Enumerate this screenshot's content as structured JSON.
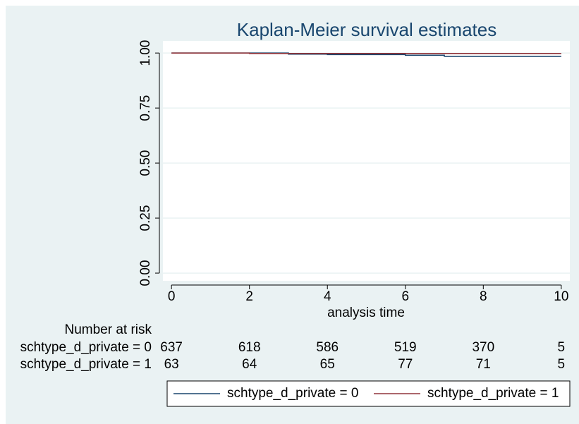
{
  "chart_data": {
    "type": "step",
    "title": "Kaplan-Meier survival estimates",
    "x_label": "analysis time",
    "x": [
      0,
      2,
      3,
      4,
      6,
      7,
      10
    ],
    "series": [
      {
        "name": "schtype_d_private = 0",
        "color": "#1a476f",
        "values": [
          1,
          1,
          0.995,
          0.993,
          0.99,
          0.985,
          0.985
        ]
      },
      {
        "name": "schtype_d_private = 1",
        "color": "#90353b",
        "values": [
          1,
          0.998,
          0.998,
          0.998,
          0.998,
          0.998,
          0.998
        ]
      }
    ],
    "xlim": [
      -0.22,
      10.22
    ],
    "xticks": [
      0,
      2,
      4,
      6,
      8,
      10
    ],
    "ylim": [
      -0.035,
      1.055
    ],
    "yticks": [
      {
        "value": 0,
        "label": "0.00"
      },
      {
        "value": 0.25,
        "label": "0.25"
      },
      {
        "value": 0.5,
        "label": "0.50"
      },
      {
        "value": 0.75,
        "label": "0.75"
      },
      {
        "value": 1,
        "label": "1.00"
      }
    ],
    "grid": true,
    "legend": "bottom",
    "risk_table": {
      "title": "Number at risk",
      "rows": [
        {
          "label": "schtype_d_private = 0",
          "values": [
            637,
            618,
            586,
            519,
            370,
            5
          ]
        },
        {
          "label": "schtype_d_private = 1",
          "values": [
            63,
            64,
            65,
            77,
            71,
            5
          ]
        }
      ]
    }
  }
}
